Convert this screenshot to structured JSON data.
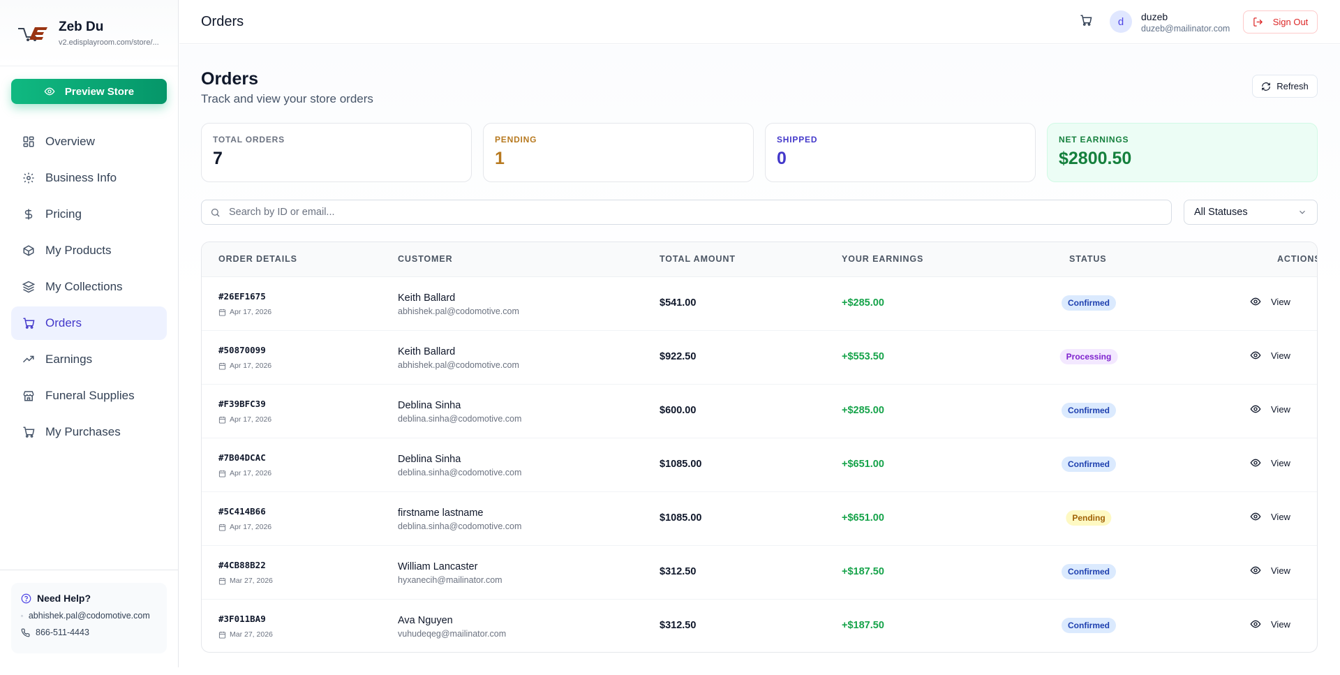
{
  "brand": {
    "name": "Zeb Du",
    "url": "v2.edisplayroom.com/store/..."
  },
  "sidebar": {
    "preview_label": "Preview Store",
    "items": [
      {
        "label": "Overview",
        "icon": "grid-icon",
        "active": false
      },
      {
        "label": "Business Info",
        "icon": "gear-icon",
        "active": false
      },
      {
        "label": "Pricing",
        "icon": "dollar-icon",
        "active": false
      },
      {
        "label": "My Products",
        "icon": "box-icon",
        "active": false
      },
      {
        "label": "My Collections",
        "icon": "layers-icon",
        "active": false
      },
      {
        "label": "Orders",
        "icon": "cart-icon",
        "active": true
      },
      {
        "label": "Earnings",
        "icon": "trending-up-icon",
        "active": false
      },
      {
        "label": "Funeral Supplies",
        "icon": "store-icon",
        "active": false
      },
      {
        "label": "My Purchases",
        "icon": "cart-icon",
        "active": false
      }
    ],
    "help": {
      "title": "Need Help?",
      "email": "abhishek.pal@codomotive.com",
      "phone": "866-511-4443"
    }
  },
  "topbar": {
    "title": "Orders",
    "user": {
      "initial": "d",
      "name": "duzeb",
      "email": "duzeb@mailinator.com"
    },
    "signout_label": "Sign Out"
  },
  "main": {
    "title": "Orders",
    "subtitle": "Track and view your store orders",
    "refresh_label": "Refresh",
    "stats": [
      {
        "label": "TOTAL ORDERS",
        "value": "7",
        "label_color": "#6b7280",
        "value_color": "#0f172a"
      },
      {
        "label": "PENDING",
        "value": "1",
        "label_color": "#b7791f",
        "value_color": "#b7791f"
      },
      {
        "label": "SHIPPED",
        "value": "0",
        "label_color": "#4338ca",
        "value_color": "#4338ca"
      },
      {
        "label": "NET EARNINGS",
        "value": "$2800.50",
        "label_color": "#15803d",
        "value_color": "#15803d"
      }
    ],
    "search": {
      "placeholder": "Search by ID or email...",
      "value": ""
    },
    "status_filter": {
      "selected": "All Statuses"
    },
    "table": {
      "headers": {
        "order": "ORDER DETAILS",
        "customer": "CUSTOMER",
        "amount": "TOTAL AMOUNT",
        "earnings": "YOUR EARNINGS",
        "status": "STATUS",
        "actions": "ACTIONS"
      },
      "view_label": "View",
      "rows": [
        {
          "id": "#26EF1675",
          "date": "Apr 17, 2026",
          "name": "Keith Ballard",
          "email": "abhishek.pal@codomotive.com",
          "amount": "$541.00",
          "earnings": "+$285.00",
          "status": "Confirmed"
        },
        {
          "id": "#50870099",
          "date": "Apr 17, 2026",
          "name": "Keith Ballard",
          "email": "abhishek.pal@codomotive.com",
          "amount": "$922.50",
          "earnings": "+$553.50",
          "status": "Processing"
        },
        {
          "id": "#F39BFC39",
          "date": "Apr 17, 2026",
          "name": "Deblina Sinha",
          "email": "deblina.sinha@codomotive.com",
          "amount": "$600.00",
          "earnings": "+$285.00",
          "status": "Confirmed"
        },
        {
          "id": "#7B04DCAC",
          "date": "Apr 17, 2026",
          "name": "Deblina Sinha",
          "email": "deblina.sinha@codomotive.com",
          "amount": "$1085.00",
          "earnings": "+$651.00",
          "status": "Confirmed"
        },
        {
          "id": "#5C414B66",
          "date": "Apr 17, 2026",
          "name": "firstname lastname",
          "email": "deblina.sinha@codomotive.com",
          "amount": "$1085.00",
          "earnings": "+$651.00",
          "status": "Pending"
        },
        {
          "id": "#4CB88B22",
          "date": "Mar 27, 2026",
          "name": "William Lancaster",
          "email": "hyxanecih@mailinator.com",
          "amount": "$312.50",
          "earnings": "+$187.50",
          "status": "Confirmed"
        },
        {
          "id": "#3F011BA9",
          "date": "Mar 27, 2026",
          "name": "Ava Nguyen",
          "email": "vuhudeqeg@mailinator.com",
          "amount": "$312.50",
          "earnings": "+$187.50",
          "status": "Confirmed"
        }
      ]
    }
  }
}
